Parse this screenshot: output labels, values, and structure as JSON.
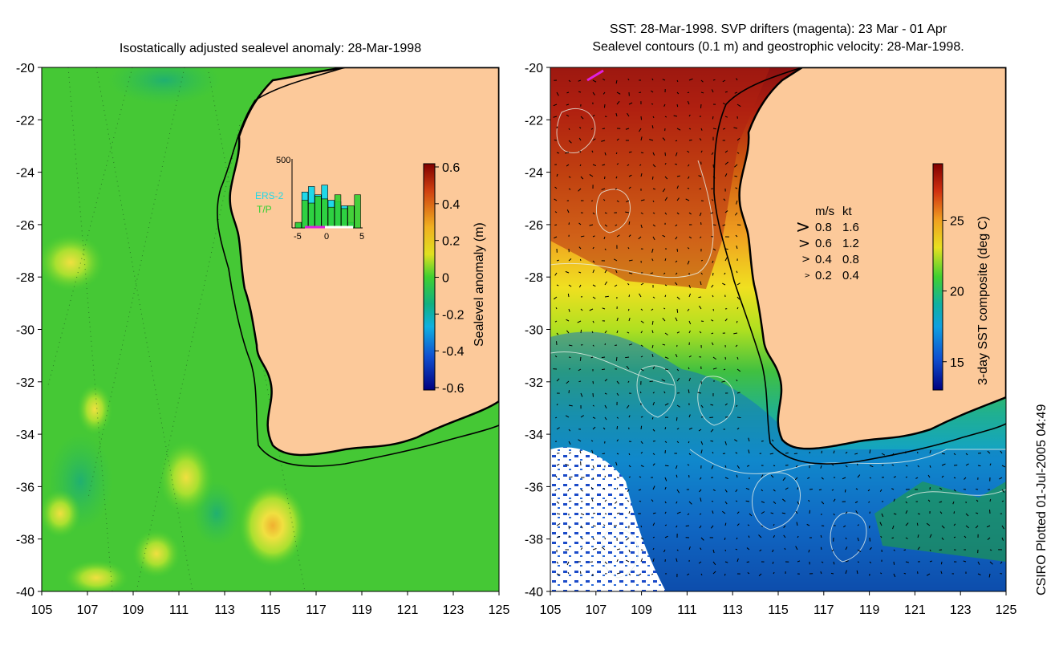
{
  "left_panel": {
    "title": "Isostatically adjusted sealevel anomaly: 28-Mar-1998",
    "colorbar": {
      "label": "Sealevel anomaly (m)",
      "ticks": [
        "0.6",
        "0.4",
        "0.2",
        "0",
        "-0.2",
        "-0.4",
        "-0.6"
      ],
      "range": [
        -0.6,
        0.6
      ]
    },
    "inset": {
      "y_max_label": "500",
      "x_ticks": [
        "-5",
        "0",
        "5"
      ],
      "legend": [
        {
          "label": "ERS-2",
          "color": "#20d8e8"
        },
        {
          "label": "T/P",
          "color": "#30d030"
        }
      ],
      "ers2_values": [
        30,
        260,
        300,
        240,
        310,
        200,
        190,
        160,
        40,
        0
      ],
      "tp_values": [
        40,
        200,
        180,
        230,
        210,
        150,
        240,
        140,
        160,
        240
      ]
    }
  },
  "right_panel": {
    "title_line1": "SST: 28-Mar-1998. SVP drifters (magenta): 23 Mar - 01 Apr",
    "title_line2": "Sealevel contours (0.1 m) and geostrophic velocity: 28-Mar-1998.",
    "colorbar": {
      "label": "3-day SST composite (deg C)",
      "ticks": [
        "25",
        "20",
        "15"
      ],
      "range": [
        13,
        29
      ]
    },
    "velocity_legend": {
      "header_ms": "m/s",
      "header_kt": "kt",
      "rows": [
        {
          "ms": "0.8",
          "kt": "1.6"
        },
        {
          "ms": "0.6",
          "kt": "1.2"
        },
        {
          "ms": "0.4",
          "kt": "0.8"
        },
        {
          "ms": "0.2",
          "kt": "0.4"
        }
      ]
    }
  },
  "axes": {
    "lat_ticks": [
      "-20",
      "-22",
      "-24",
      "-26",
      "-28",
      "-30",
      "-32",
      "-34",
      "-36",
      "-38",
      "-40"
    ],
    "lon_ticks": [
      "105",
      "107",
      "109",
      "111",
      "113",
      "115",
      "117",
      "119",
      "121",
      "123",
      "125"
    ],
    "lat_range": [
      -40,
      -20
    ],
    "lon_range": [
      105,
      125
    ]
  },
  "credit": "CSIRO Plotted 01-Jul-2005 04:49",
  "colors": {
    "land": "#fcc99a",
    "ocean_green": "#33cc33",
    "coast": "#000000"
  }
}
